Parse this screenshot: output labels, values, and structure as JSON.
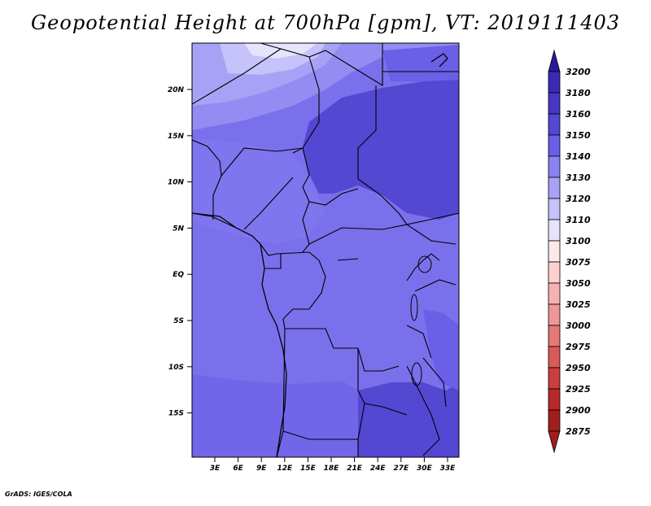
{
  "title": "Geopotential Height at 700hPa [gpm], VT: 2019111403",
  "credit": "GrADS: IGES/COLA",
  "map": {
    "lat_ticks": [
      "20N",
      "15N",
      "10N",
      "5N",
      "EQ",
      "5S",
      "10S",
      "15S"
    ],
    "lon_ticks": [
      "3E",
      "6E",
      "9E",
      "12E",
      "15E",
      "18E",
      "21E",
      "24E",
      "27E",
      "30E",
      "33E"
    ],
    "lat_range": [
      -19.5,
      24
    ],
    "lon_range": [
      0,
      35
    ],
    "base_color": "#7b70ec"
  },
  "colorbar": {
    "levels": [
      "3200",
      "3180",
      "3160",
      "3150",
      "3140",
      "3130",
      "3120",
      "3110",
      "3100",
      "3075",
      "3050",
      "3025",
      "3000",
      "2975",
      "2950",
      "2925",
      "2900",
      "2875"
    ],
    "colors": [
      "#2a1c9c",
      "#3a2ab4",
      "#4637c4",
      "#5447d2",
      "#6a5fe6",
      "#8a82f0",
      "#a8a2f6",
      "#c6c2fa",
      "#e6e4fd",
      "#fde8e8",
      "#fbd0d0",
      "#f6b2b2",
      "#ef9696",
      "#e57878",
      "#da5a5a",
      "#cc3e3e",
      "#b82a2a",
      "#a01e1e"
    ]
  }
}
